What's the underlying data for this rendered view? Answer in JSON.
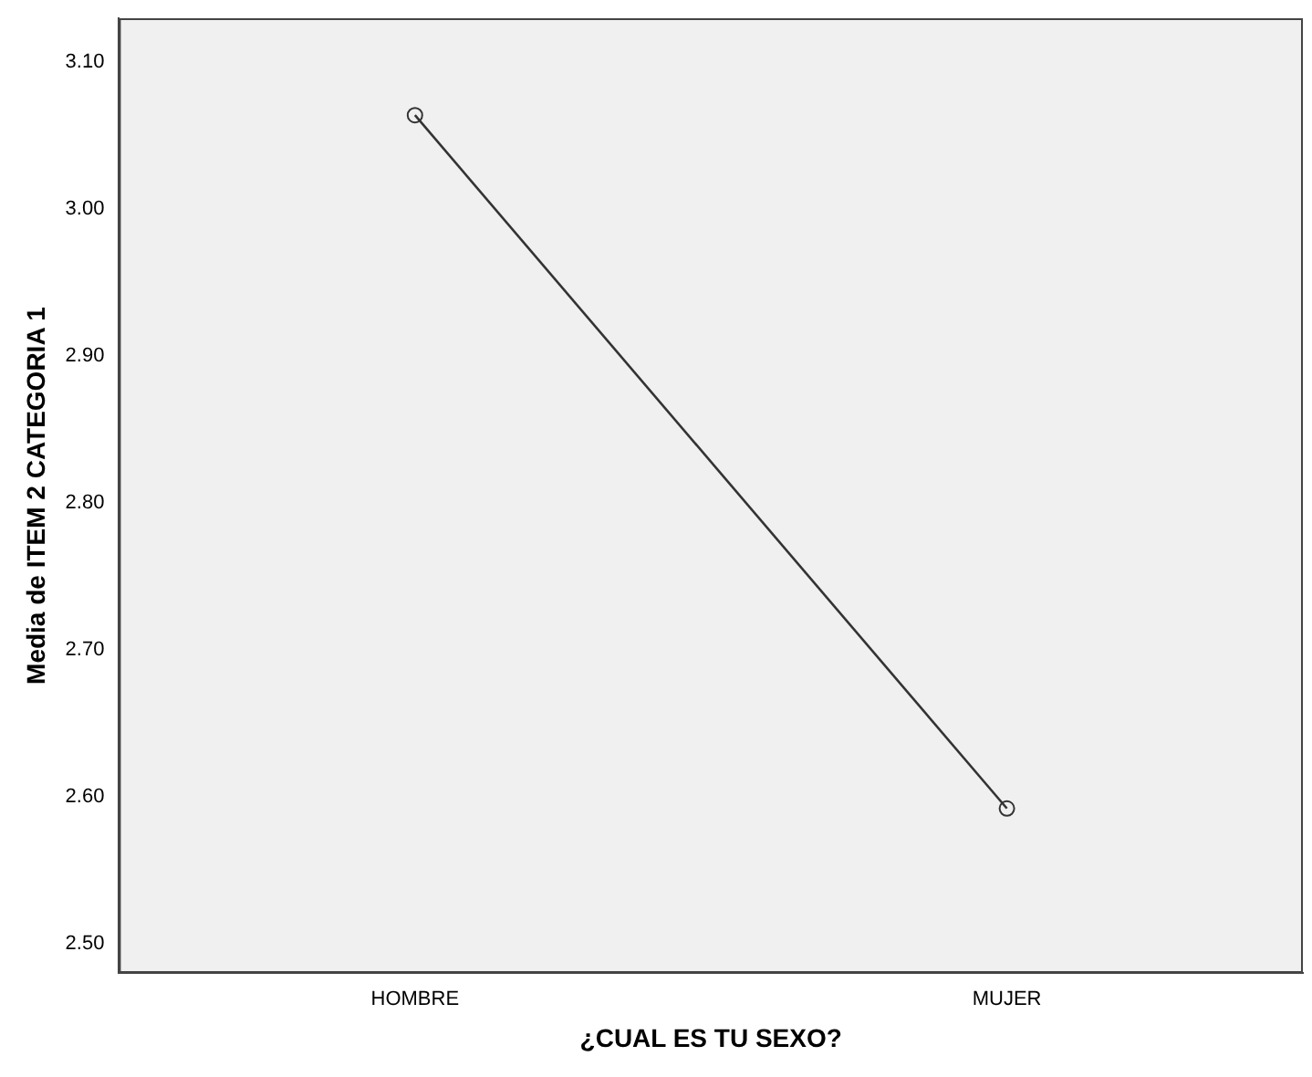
{
  "chart_data": {
    "type": "line",
    "xlabel": "¿CUAL ES TU SEXO?",
    "ylabel": "Media de ITEM 2 CATEGORIA 1",
    "categories": [
      "HOMBRE",
      "MUJER"
    ],
    "series": [
      {
        "color": "#333333",
        "values": [
          3.064,
          2.592
        ]
      }
    ],
    "ylim": [
      2.48,
      3.13
    ],
    "yticks": [
      {
        "value": 2.5,
        "label": "2.50"
      },
      {
        "value": 2.6,
        "label": "2.60"
      },
      {
        "value": 2.7,
        "label": "2.70"
      },
      {
        "value": 2.8,
        "label": "2.80"
      },
      {
        "value": 2.9,
        "label": "2.90"
      },
      {
        "value": 3.0,
        "label": "3.00"
      },
      {
        "value": 3.1,
        "label": "3.10"
      }
    ],
    "grid": false,
    "legend": false,
    "marker": "circle",
    "line_style": "solid"
  }
}
